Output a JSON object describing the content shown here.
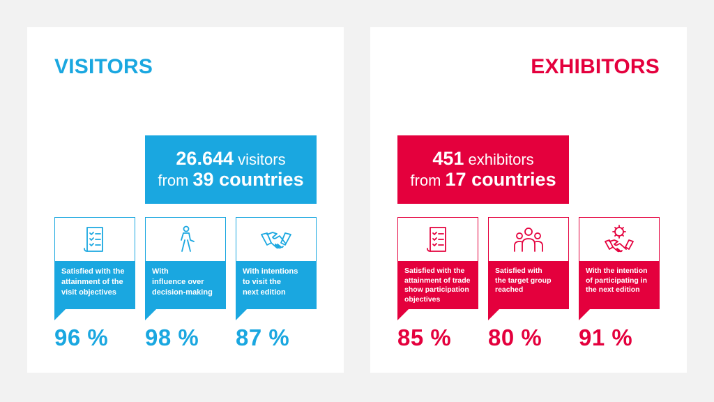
{
  "visitors": {
    "title": "VISITORS",
    "summary": {
      "count": "26.644",
      "count_label": "visitors",
      "from_label": "from",
      "countries": "39 countries"
    },
    "stats": [
      {
        "icon": "checklist-icon",
        "label_lines": [
          "Satisfied with the",
          "attainment of the",
          "visit objectives"
        ],
        "value": "96 %"
      },
      {
        "icon": "walking-person-icon",
        "label_lines": [
          "With",
          "influence over",
          "decision-making"
        ],
        "value": "98 %"
      },
      {
        "icon": "handshake-icon",
        "label_lines": [
          "With intentions",
          "to visit the",
          "next edition"
        ],
        "value": "87 %"
      }
    ]
  },
  "exhibitors": {
    "title": "EXHIBITORS",
    "summary": {
      "count": "451",
      "count_label": "exhibitors",
      "from_label": "from",
      "countries": "17 countries"
    },
    "stats": [
      {
        "icon": "checklist-icon",
        "label_lines": [
          "Satisfied with the",
          "attainment of trade",
          "show participation",
          "objectives"
        ],
        "value": "85 %"
      },
      {
        "icon": "group-of-people-icon",
        "label_lines": [
          "Satisfied with",
          "the target group",
          "reached"
        ],
        "value": "80 %"
      },
      {
        "icon": "handshake-gear-icon",
        "label_lines": [
          "With the intention",
          "of participating in",
          "the next edition"
        ],
        "value": "91 %"
      }
    ]
  },
  "colors": {
    "visitors_accent": "#1aa7e0",
    "exhibitors_accent": "#e4003d",
    "background": "#f2f2f2"
  }
}
